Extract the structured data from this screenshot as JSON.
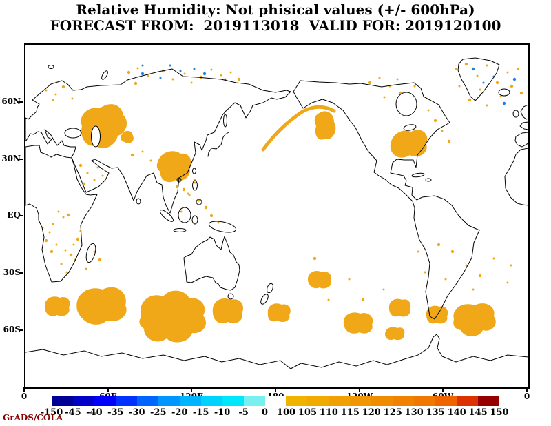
{
  "header": {
    "title_line1": "Relative Humidity: Not phisical values (+/- 600hPa)",
    "title_line2": "FORECAST FROM:  2019113018  VALID FOR: 2019120100"
  },
  "map": {
    "y_axis": [
      "60N",
      "30N",
      "EQ",
      "30S",
      "60S"
    ],
    "x_axis": [
      "0",
      "60E",
      "120E",
      "180",
      "120W",
      "60W",
      "0"
    ]
  },
  "colorbar": {
    "labels": [
      "-150",
      "-45",
      "-40",
      "-35",
      "-30",
      "-25",
      "-20",
      "-15",
      "-10",
      "-5",
      "0",
      "100",
      "105",
      "110",
      "115",
      "120",
      "125",
      "130",
      "135",
      "140",
      "145",
      "150"
    ],
    "colors": [
      "#000096",
      "#0000c8",
      "#0000fa",
      "#0032ff",
      "#0064ff",
      "#0096ff",
      "#00b4ff",
      "#00d2ff",
      "#00e6fa",
      "#78f0f0",
      "#ffffff",
      "#f0b400",
      "#f0aa00",
      "#f0a000",
      "#f09600",
      "#f08c00",
      "#f08200",
      "#f07800",
      "#f06400",
      "#dc3200",
      "#960000"
    ]
  },
  "credit": "GrADS/COLA",
  "colors": {
    "shading": "#f0a818",
    "negative_dot": "#1e82dc",
    "credit_text": "#8b0000",
    "title_text": "#000000"
  }
}
